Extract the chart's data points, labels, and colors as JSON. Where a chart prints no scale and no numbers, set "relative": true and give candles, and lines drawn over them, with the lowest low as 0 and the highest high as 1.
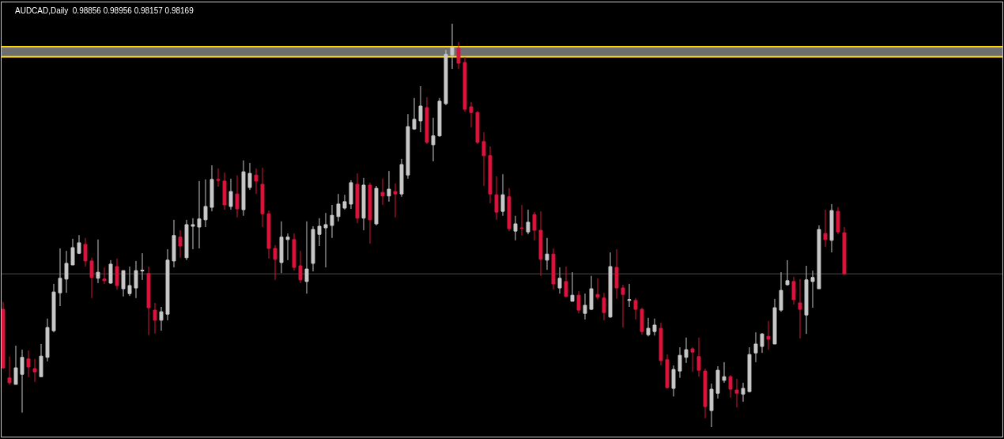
{
  "chart_data": {
    "type": "candlestick",
    "title": "AUDCAD,Daily  0.98856 0.98956 0.98157 0.98169",
    "relative": true,
    "grid": false,
    "legend": false,
    "colors": [
      "#dc143c",
      "#dc143c",
      "#c8c8c8",
      "#c8c8c8",
      "#dc143c",
      "#dc143c",
      "#c8c8c8",
      "#c8c8c8",
      "#c8c8c8",
      "#c8c8c8",
      "#c8c8c8",
      "#c8c8c8",
      "#c8c8c8",
      "#dc143c",
      "#dc143c",
      "#c8c8c8",
      "#dc143c",
      "#c8c8c8",
      "#dc143c",
      "#c8c8c8",
      "#c8c8c8",
      "#c8c8c8",
      "#c8c8c8",
      "#dc143c",
      "#dc143c",
      "#c8c8c8",
      "#c8c8c8",
      "#c8c8c8",
      "#dc143c",
      "#c8c8c8",
      "#c8c8c8",
      "#c8c8c8",
      "#c8c8c8",
      "#c8c8c8",
      "#dc143c",
      "#dc143c",
      "#c8c8c8",
      "#dc143c",
      "#c8c8c8",
      "#c8c8c8",
      "#dc143c",
      "#dc143c",
      "#dc143c",
      "#dc143c",
      "#c8c8c8",
      "#c8c8c8",
      "#dc143c",
      "#dc143c",
      "#c8c8c8",
      "#c8c8c8",
      "#c8c8c8",
      "#c8c8c8",
      "#c8c8c8",
      "#c8c8c8",
      "#c8c8c8",
      "#c8c8c8",
      "#dc143c",
      "#c8c8c8",
      "#dc143c",
      "#c8c8c8",
      "#dc143c",
      "#c8c8c8",
      "#dc143c",
      "#c8c8c8",
      "#c8c8c8",
      "#c8c8c8",
      "#c8c8c8",
      "#dc143c",
      "#c8c8c8",
      "#c8c8c8",
      "#c8c8c8",
      "#c8c8c8",
      "#dc143c",
      "#dc143c",
      "#dc143c",
      "#dc143c",
      "#dc143c",
      "#dc143c",
      "#dc143c",
      "#c8c8c8",
      "#dc143c",
      "#c8c8c8",
      "#dc143c",
      "#c8c8c8",
      "#dc143c",
      "#dc143c",
      "#c8c8c8",
      "#dc143c",
      "#c8c8c8",
      "#dc143c",
      "#c8c8c8",
      "#dc143c",
      "#c8c8c8",
      "#c8c8c8",
      "#dc143c",
      "#dc143c",
      "#c8c8c8",
      "#dc143c",
      "#dc143c",
      "#c8c8c8",
      "#dc143c",
      "#dc143c",
      "#c8c8c8",
      "#c8c8c8",
      "#dc143c",
      "#dc143c",
      "#c8c8c8",
      "#c8c8c8",
      "#c8c8c8",
      "#dc143c",
      "#dc143c",
      "#dc143c",
      "#c8c8c8",
      "#c8c8c8",
      "#c8c8c8",
      "#dc143c",
      "#dc143c",
      "#c8c8c8",
      "#c8c8c8",
      "#c8c8c8",
      "#c8c8c8",
      "#dc143c",
      "#c8c8c8",
      "#c8c8c8",
      "#c8c8c8",
      "#dc143c",
      "#dc143c",
      "#c8c8c8",
      "#c8c8c8",
      "#c8c8c8",
      "#dc143c",
      "#c8c8c8",
      "#dc143c",
      "#dc143c"
    ],
    "categories": [
      null,
      null,
      null,
      null,
      null,
      null,
      null,
      null,
      null,
      null,
      null,
      null,
      null,
      null,
      null,
      null,
      null,
      null,
      null,
      null,
      null,
      null,
      null,
      null,
      null,
      null,
      null,
      null,
      null,
      null,
      null,
      null,
      null,
      null,
      null,
      null,
      null,
      null,
      null,
      null,
      null,
      null,
      null,
      null,
      null,
      null,
      null,
      null,
      null,
      null,
      null,
      null,
      null,
      null,
      null,
      null,
      null,
      null,
      null,
      null,
      null,
      null,
      null,
      null,
      null,
      null,
      null,
      null,
      null,
      null,
      null,
      null,
      null,
      null,
      null,
      null,
      null,
      null,
      null,
      null,
      null,
      null,
      null,
      null,
      null,
      null,
      null,
      null,
      null,
      null,
      null,
      null,
      null,
      null,
      null,
      null,
      null,
      null,
      null,
      null,
      null,
      null,
      null,
      null,
      null,
      null,
      null,
      null,
      null,
      null,
      null,
      null,
      null,
      null,
      null,
      null,
      null,
      null,
      null,
      null,
      null,
      null,
      null,
      null,
      null,
      null,
      null,
      null,
      null,
      null,
      null,
      null,
      null,
      null
    ],
    "ohlc": [
      [
        0.292,
        0.31,
        0.144,
        0.147
      ],
      [
        0.122,
        0.175,
        0.105,
        0.11
      ],
      [
        0.106,
        0.202,
        0.106,
        0.147
      ],
      [
        0.131,
        0.192,
        0.036,
        0.173
      ],
      [
        0.169,
        0.19,
        0.124,
        0.149
      ],
      [
        0.145,
        0.169,
        0.112,
        0.137
      ],
      [
        0.125,
        0.206,
        0.125,
        0.176
      ],
      [
        0.173,
        0.269,
        0.163,
        0.247
      ],
      [
        0.239,
        0.355,
        0.235,
        0.335
      ],
      [
        0.333,
        0.443,
        0.3,
        0.369
      ],
      [
        0.367,
        0.437,
        0.333,
        0.406
      ],
      [
        0.402,
        0.467,
        0.402,
        0.445
      ],
      [
        0.431,
        0.476,
        0.429,
        0.457
      ],
      [
        0.453,
        0.469,
        0.398,
        0.412
      ],
      [
        0.412,
        0.42,
        0.32,
        0.371
      ],
      [
        0.369,
        0.465,
        0.357,
        0.384
      ],
      [
        0.367,
        0.396,
        0.355,
        0.363
      ],
      [
        0.357,
        0.414,
        0.355,
        0.404
      ],
      [
        0.398,
        0.418,
        0.341,
        0.351
      ],
      [
        0.343,
        0.388,
        0.324,
        0.388
      ],
      [
        0.331,
        0.398,
        0.325,
        0.351
      ],
      [
        0.345,
        0.412,
        0.32,
        0.388
      ],
      [
        0.387,
        0.431,
        0.365,
        0.389
      ],
      [
        0.381,
        0.398,
        0.228,
        0.296
      ],
      [
        0.29,
        0.308,
        0.232,
        0.265
      ],
      [
        0.265,
        0.298,
        0.239,
        0.286
      ],
      [
        0.28,
        0.441,
        0.265,
        0.414
      ],
      [
        0.412,
        0.514,
        0.396,
        0.475
      ],
      [
        0.471,
        0.488,
        0.42,
        0.449
      ],
      [
        0.42,
        0.514,
        0.414,
        0.502
      ],
      [
        0.498,
        0.518,
        0.441,
        0.502
      ],
      [
        0.496,
        0.61,
        0.443,
        0.516
      ],
      [
        0.514,
        0.614,
        0.496,
        0.547
      ],
      [
        0.545,
        0.649,
        0.535,
        0.614
      ],
      [
        0.614,
        0.641,
        0.596,
        0.612
      ],
      [
        0.61,
        0.631,
        0.539,
        0.551
      ],
      [
        0.547,
        0.616,
        0.539,
        0.584
      ],
      [
        0.578,
        0.624,
        0.52,
        0.541
      ],
      [
        0.539,
        0.661,
        0.524,
        0.633
      ],
      [
        0.594,
        0.655,
        0.588,
        0.629
      ],
      [
        0.625,
        0.641,
        0.578,
        0.61
      ],
      [
        0.602,
        0.643,
        0.496,
        0.529
      ],
      [
        0.529,
        0.537,
        0.418,
        0.443
      ],
      [
        0.443,
        0.451,
        0.365,
        0.416
      ],
      [
        0.408,
        0.51,
        0.382,
        0.471
      ],
      [
        0.465,
        0.48,
        0.414,
        0.471
      ],
      [
        0.465,
        0.48,
        0.388,
        0.396
      ],
      [
        0.4,
        0.437,
        0.357,
        0.365
      ],
      [
        0.361,
        0.51,
        0.331,
        0.392
      ],
      [
        0.406,
        0.498,
        0.386,
        0.49
      ],
      [
        0.478,
        0.518,
        0.449,
        0.498
      ],
      [
        0.494,
        0.531,
        0.396,
        0.502
      ],
      [
        0.5,
        0.551,
        0.469,
        0.525
      ],
      [
        0.522,
        0.578,
        0.51,
        0.553
      ],
      [
        0.543,
        0.576,
        0.539,
        0.559
      ],
      [
        0.553,
        0.612,
        0.541,
        0.606
      ],
      [
        0.602,
        0.629,
        0.506,
        0.518
      ],
      [
        0.518,
        0.618,
        0.488,
        0.6
      ],
      [
        0.6,
        0.606,
        0.455,
        0.514
      ],
      [
        0.504,
        0.598,
        0.5,
        0.592
      ],
      [
        0.582,
        0.616,
        0.551,
        0.573
      ],
      [
        0.573,
        0.635,
        0.559,
        0.59
      ],
      [
        0.584,
        0.604,
        0.52,
        0.578
      ],
      [
        0.578,
        0.665,
        0.571,
        0.651
      ],
      [
        0.625,
        0.776,
        0.616,
        0.745
      ],
      [
        0.739,
        0.816,
        0.737,
        0.763
      ],
      [
        0.759,
        0.845,
        0.731,
        0.796
      ],
      [
        0.792,
        0.818,
        0.702,
        0.706
      ],
      [
        0.7,
        0.767,
        0.659,
        0.722
      ],
      [
        0.722,
        0.816,
        0.72,
        0.808
      ],
      [
        0.802,
        0.935,
        0.798,
        0.924
      ],
      [
        0.922,
        1.0,
        0.888,
        0.941
      ],
      [
        0.939,
        0.955,
        0.888,
        0.902
      ],
      [
        0.904,
        0.918,
        0.782,
        0.788
      ],
      [
        0.794,
        0.806,
        0.743,
        0.78
      ],
      [
        0.78,
        0.784,
        0.702,
        0.706
      ],
      [
        0.708,
        0.731,
        0.598,
        0.673
      ],
      [
        0.673,
        0.696,
        0.555,
        0.578
      ],
      [
        0.576,
        0.622,
        0.514,
        0.533
      ],
      [
        0.535,
        0.627,
        0.524,
        0.576
      ],
      [
        0.571,
        0.592,
        0.486,
        0.492
      ],
      [
        0.486,
        0.524,
        0.463,
        0.504
      ],
      [
        0.494,
        0.551,
        0.475,
        0.493
      ],
      [
        0.484,
        0.539,
        0.478,
        0.508
      ],
      [
        0.527,
        0.533,
        0.463,
        0.488
      ],
      [
        0.488,
        0.535,
        0.375,
        0.416
      ],
      [
        0.414,
        0.469,
        0.39,
        0.429
      ],
      [
        0.429,
        0.443,
        0.341,
        0.355
      ],
      [
        0.345,
        0.396,
        0.331,
        0.369
      ],
      [
        0.361,
        0.398,
        0.322,
        0.324
      ],
      [
        0.312,
        0.384,
        0.312,
        0.327
      ],
      [
        0.327,
        0.337,
        0.282,
        0.29
      ],
      [
        0.282,
        0.331,
        0.267,
        0.302
      ],
      [
        0.292,
        0.375,
        0.29,
        0.343
      ],
      [
        0.329,
        0.369,
        0.316,
        0.322
      ],
      [
        0.32,
        0.333,
        0.265,
        0.284
      ],
      [
        0.273,
        0.433,
        0.271,
        0.398
      ],
      [
        0.396,
        0.441,
        0.318,
        0.345
      ],
      [
        0.345,
        0.353,
        0.247,
        0.329
      ],
      [
        0.314,
        0.355,
        0.298,
        0.316
      ],
      [
        0.314,
        0.32,
        0.267,
        0.292
      ],
      [
        0.292,
        0.296,
        0.229,
        0.237
      ],
      [
        0.229,
        0.271,
        0.225,
        0.245
      ],
      [
        0.237,
        0.269,
        0.227,
        0.253
      ],
      [
        0.245,
        0.259,
        0.153,
        0.165
      ],
      [
        0.167,
        0.18,
        0.096,
        0.098
      ],
      [
        0.096,
        0.153,
        0.076,
        0.143
      ],
      [
        0.139,
        0.198,
        0.122,
        0.178
      ],
      [
        0.173,
        0.222,
        0.159,
        0.192
      ],
      [
        0.194,
        0.198,
        0.137,
        0.186
      ],
      [
        0.175,
        0.222,
        0.125,
        0.141
      ],
      [
        0.139,
        0.145,
        0.022,
        0.051
      ],
      [
        0.041,
        0.108,
        0.0,
        0.094
      ],
      [
        0.084,
        0.151,
        0.071,
        0.141
      ],
      [
        0.116,
        0.161,
        0.11,
        0.125
      ],
      [
        0.125,
        0.129,
        0.073,
        0.094
      ],
      [
        0.092,
        0.12,
        0.049,
        0.084
      ],
      [
        0.082,
        0.11,
        0.063,
        0.096
      ],
      [
        0.088,
        0.198,
        0.086,
        0.18
      ],
      [
        0.184,
        0.235,
        0.161,
        0.206
      ],
      [
        0.2,
        0.233,
        0.184,
        0.231
      ],
      [
        0.225,
        0.263,
        0.192,
        0.218
      ],
      [
        0.206,
        0.318,
        0.206,
        0.296
      ],
      [
        0.29,
        0.384,
        0.286,
        0.339
      ],
      [
        0.353,
        0.414,
        0.351,
        0.363
      ],
      [
        0.361,
        0.373,
        0.304,
        0.316
      ],
      [
        0.308,
        0.367,
        0.22,
        0.292
      ],
      [
        0.278,
        0.4,
        0.231,
        0.365
      ],
      [
        0.361,
        0.388,
        0.296,
        0.371
      ],
      [
        0.343,
        0.5,
        0.343,
        0.49
      ],
      [
        0.48,
        0.539,
        0.447,
        0.465
      ],
      [
        0.463,
        0.553,
        0.433,
        0.537
      ],
      [
        0.535,
        0.545,
        0.478,
        0.484
      ],
      [
        0.482,
        0.496,
        0.378,
        0.38
      ]
    ],
    "ref_lines": [
      {
        "axis": "y",
        "value": 0.943,
        "color": "#ffd700"
      },
      {
        "axis": "y",
        "value": 0.918,
        "color": "#ffd700"
      },
      {
        "axis": "y",
        "value": 0.38,
        "color": "#4a4a52"
      }
    ],
    "bands": [
      {
        "axis": "y",
        "from": 0.918,
        "to": 0.943,
        "color": "#6e6e6e"
      }
    ]
  }
}
